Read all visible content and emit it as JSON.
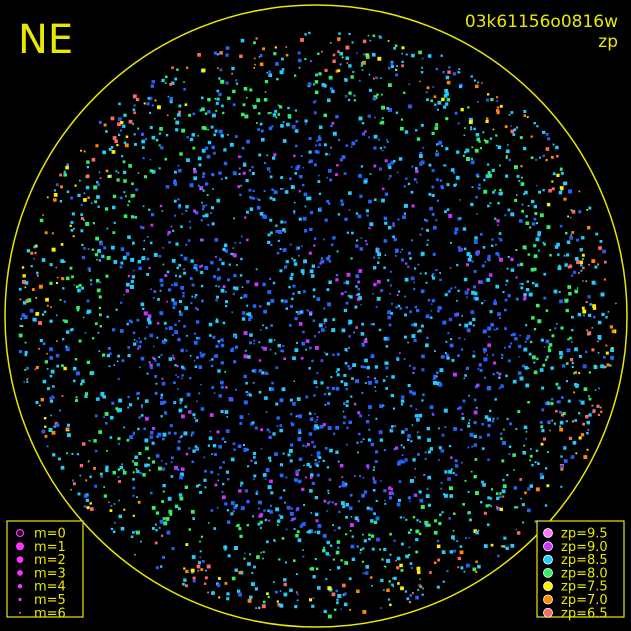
{
  "label": "NE",
  "image_id": "03k61156o0816w",
  "mode": "zp",
  "magnitude_legend": {
    "items": [
      "m=0",
      "m=1",
      "m=2",
      "m=3",
      "m=4",
      "m=5",
      "m=6"
    ]
  },
  "zp_legend": {
    "items": [
      {
        "label": "zp=9.5",
        "color": "#ff77ff"
      },
      {
        "label": "zp=9.0",
        "color": "#cc33ff"
      },
      {
        "label": "zp=8.5",
        "color": "#22ccff"
      },
      {
        "label": "zp=8.0",
        "color": "#33ee66"
      },
      {
        "label": "zp=7.5",
        "color": "#ffee00"
      },
      {
        "label": "zp=7.0",
        "color": "#ff8800"
      },
      {
        "label": "zp=6.5",
        "color": "#ff6666"
      }
    ]
  }
}
